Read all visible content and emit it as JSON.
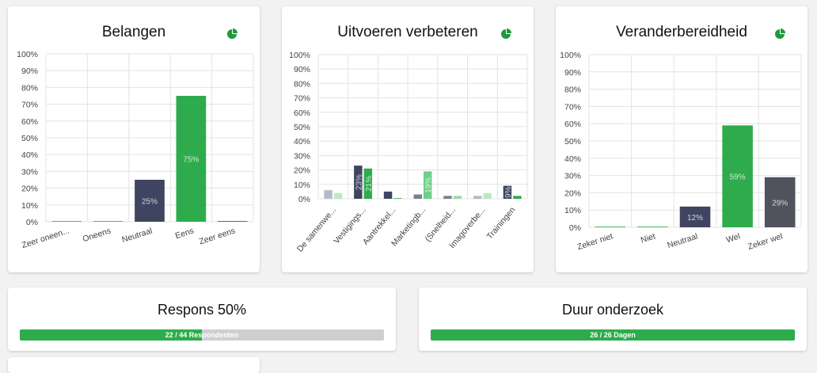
{
  "chart_data": [
    {
      "type": "bar",
      "title": "Belangen",
      "categories": [
        "Zeer oneen...",
        "Oneens",
        "Neutraal",
        "Eens",
        "Zeer eens"
      ],
      "values": [
        0,
        0,
        25,
        75,
        0
      ],
      "value_labels": [
        "",
        "",
        "25%",
        "75%",
        ""
      ],
      "colors": [
        "#2eac4d",
        "#2eac4d",
        "#3f4560",
        "#2eac4d",
        "#3f4560"
      ],
      "ylim": [
        0,
        100
      ],
      "yticks": [
        "0%",
        "10%",
        "20%",
        "30%",
        "40%",
        "50%",
        "60%",
        "70%",
        "80%",
        "90%",
        "100%"
      ],
      "grid": true
    },
    {
      "type": "bar",
      "title": "Uitvoeren verbeteren",
      "categories": [
        "De samenwe...",
        "Vestigings...",
        "Aantrekkel...",
        "Marketingb...",
        "(Snelheid...",
        "Imagoverbe...",
        "Trainingen"
      ],
      "series": [
        {
          "values": [
            6,
            23,
            5,
            3,
            2,
            2,
            9
          ]
        },
        {
          "values": [
            4,
            21,
            0,
            19,
            2,
            4,
            2
          ]
        }
      ],
      "value_labels": [
        [
          "",
          "23%",
          "",
          "",
          "",
          "",
          "9%"
        ],
        [
          "",
          "21%",
          "",
          "19%",
          "",
          "",
          ""
        ]
      ],
      "colors": [
        [
          "#b7bac6",
          "#3f4560",
          "#3f4560",
          "#7a7e91",
          "#7a7e91",
          "#b7bac6",
          "#3f4560"
        ],
        [
          "#bde7c7",
          "#2eac4d",
          "#2eac4d",
          "#6fcf89",
          "#9ad9a9",
          "#bde7c7",
          "#2eac4d"
        ]
      ],
      "ylim": [
        0,
        100
      ],
      "yticks": [
        "0%",
        "10%",
        "20%",
        "30%",
        "40%",
        "50%",
        "60%",
        "70%",
        "80%",
        "90%",
        "100%"
      ],
      "grid": true
    },
    {
      "type": "bar",
      "title": "Veranderbereidheid",
      "categories": [
        "Zeker niet",
        "Niet",
        "Neutraal",
        "Wel",
        "Zeker wel"
      ],
      "values": [
        0,
        0,
        12,
        59,
        29
      ],
      "value_labels": [
        "",
        "",
        "12%",
        "59%",
        "29%"
      ],
      "colors": [
        "#2eac4d",
        "#2eac4d",
        "#3f4560",
        "#2eac4d",
        "#50535c"
      ],
      "ylim": [
        0,
        100
      ],
      "yticks": [
        "0%",
        "10%",
        "20%",
        "30%",
        "40%",
        "50%",
        "60%",
        "70%",
        "80%",
        "90%",
        "100%"
      ],
      "grid": true
    }
  ],
  "icon": {
    "name": "pie-chart-icon",
    "color": "#1e9a3c"
  },
  "progress": [
    {
      "title": "Respons 50%",
      "label": "22 / 44 Respondenten",
      "fraction": 0.5
    },
    {
      "title": "Duur onderzoek",
      "label": "26 / 26 Dagen",
      "fraction": 1.0
    }
  ]
}
